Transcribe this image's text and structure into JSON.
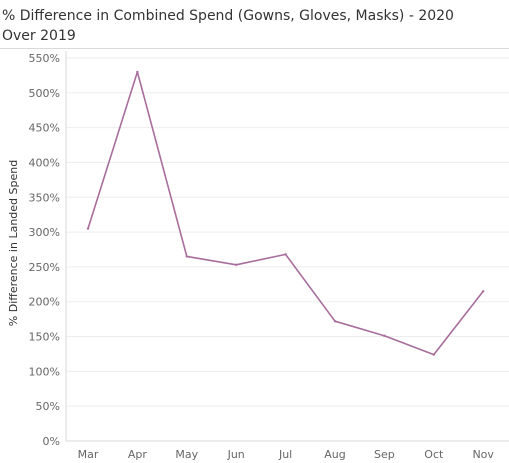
{
  "chart_data": {
    "type": "line",
    "title": "% Difference in Combined Spend (Gowns, Gloves, Masks) - 2020 Over 2019",
    "xlabel": "",
    "ylabel": "% Difference in Landed Spend",
    "categories": [
      "Mar",
      "Apr",
      "May",
      "Jun",
      "Jul",
      "Aug",
      "Sep",
      "Oct",
      "Nov"
    ],
    "series": [
      {
        "values": [
          305,
          530,
          265,
          253,
          268,
          172,
          151,
          124,
          215
        ]
      }
    ],
    "ylim": [
      0,
      560
    ],
    "yticks": [
      0,
      50,
      100,
      150,
      200,
      250,
      300,
      350,
      400,
      450,
      500,
      550
    ],
    "ytick_labels": [
      "0%",
      "50%",
      "100%",
      "150%",
      "200%",
      "250%",
      "300%",
      "350%",
      "400%",
      "450%",
      "500%",
      "550%"
    ],
    "line_color": "#a86d9c",
    "grid": "horizontal",
    "legend": "none"
  }
}
